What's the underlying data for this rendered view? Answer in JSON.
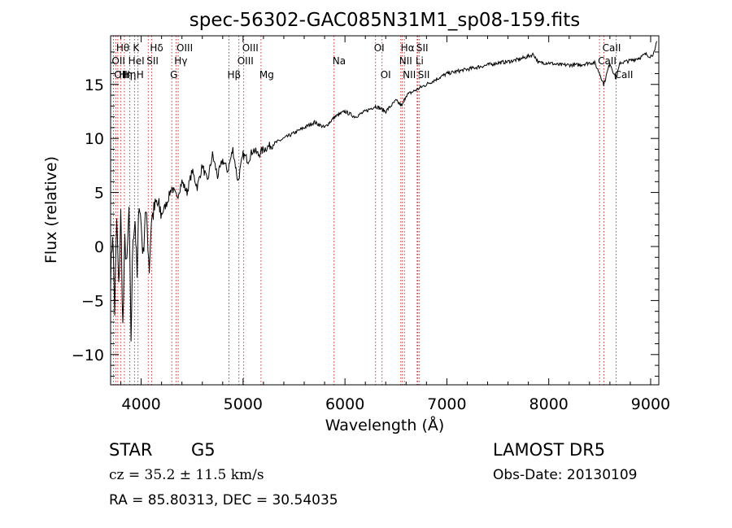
{
  "chart_data": {
    "type": "line",
    "title": "spec-56302-GAC085N31M1_sp08-159.fits",
    "xlabel": "Wavelength (Å)",
    "ylabel": "Flux (relative)",
    "xlim": [
      3700,
      9080
    ],
    "ylim": [
      -12.8,
      19.5
    ],
    "xticks": [
      "4000",
      "5000",
      "6000",
      "7000",
      "8000",
      "9000"
    ],
    "yticks": [
      "−10",
      "−5",
      "0",
      "5",
      "10",
      "15"
    ],
    "xtick_values": [
      4000,
      5000,
      6000,
      7000,
      8000,
      9000
    ],
    "ytick_values": [
      -10,
      -5,
      0,
      5,
      10,
      15
    ],
    "grid": false,
    "legend": "none",
    "series": [
      {
        "x": [
          3700,
          3720,
          3740,
          3760,
          3780,
          3800,
          3820,
          3840,
          3860,
          3880,
          3900,
          3920,
          3940,
          3960,
          3980,
          4000,
          4020,
          4040,
          4060,
          4080,
          4100,
          4150,
          4200,
          4250,
          4300,
          4350,
          4400,
          4450,
          4500,
          4550,
          4600,
          4650,
          4700,
          4750,
          4800,
          4850,
          4900,
          4950,
          5000,
          5050,
          5100,
          5150,
          5200,
          5300,
          5400,
          5500,
          5600,
          5700,
          5800,
          5900,
          6000,
          6100,
          6200,
          6300,
          6400,
          6500,
          6560,
          6600,
          6700,
          6800,
          6900,
          7000,
          7100,
          7200,
          7300,
          7400,
          7500,
          7600,
          7700,
          7800,
          7850,
          7900,
          8000,
          8100,
          8200,
          8300,
          8400,
          8450,
          8500,
          8540,
          8600,
          8660,
          8700,
          8800,
          8900,
          8950,
          9000,
          9040,
          9060
        ],
        "y": [
          -3,
          1.5,
          -6,
          2.5,
          -4,
          3,
          -7.5,
          0.5,
          -2,
          3.5,
          -8.5,
          1,
          2.5,
          -3,
          4.5,
          2,
          -1,
          3.5,
          1.5,
          -2,
          2.5,
          4,
          3,
          4,
          5.5,
          4.5,
          6,
          5,
          7,
          5.5,
          7.5,
          6,
          8.5,
          6.5,
          8,
          7,
          9,
          6,
          8.5,
          8,
          9,
          8.5,
          9,
          9.5,
          10,
          10.5,
          11,
          11.5,
          11,
          12,
          12.5,
          12,
          12.5,
          13,
          12.5,
          13.5,
          13,
          14,
          14.5,
          15,
          15.5,
          16,
          16.2,
          16.4,
          16.6,
          16.8,
          17,
          17.1,
          17.3,
          17.6,
          17.8,
          17,
          17,
          16.8,
          16.8,
          16.8,
          17,
          17,
          16,
          15,
          17,
          15.5,
          17,
          17.2,
          17.5,
          17.8,
          17.6,
          18,
          19
        ]
      }
    ],
    "lines": [
      {
        "wl": 3727,
        "label": "OII",
        "row": 1
      },
      {
        "wl": 3750,
        "label": "OII",
        "row": 2
      },
      {
        "wl": 3771,
        "label": "Hθ",
        "row": 0
      },
      {
        "wl": 3798,
        "label": "Hη",
        "row": 2
      },
      {
        "wl": 3835,
        "label": "Hη",
        "row": 2
      },
      {
        "wl": 3889,
        "label": "HeI",
        "row": 1
      },
      {
        "wl": 3934,
        "label": "K",
        "row": 0
      },
      {
        "wl": 3969,
        "label": "H",
        "row": 2
      },
      {
        "wl": 4069,
        "label": "SII",
        "row": 1
      },
      {
        "wl": 4102,
        "label": "Hδ",
        "row": 0
      },
      {
        "wl": 4300,
        "label": "G",
        "row": 2
      },
      {
        "wl": 4341,
        "label": "Hγ",
        "row": 1
      },
      {
        "wl": 4363,
        "label": "OIII",
        "row": 0
      },
      {
        "wl": 4861,
        "label": "Hβ",
        "row": 2
      },
      {
        "wl": 4959,
        "label": "OIII",
        "row": 1
      },
      {
        "wl": 5007,
        "label": "OIII",
        "row": 0
      },
      {
        "wl": 5176,
        "label": "Mg",
        "row": 2
      },
      {
        "wl": 5893,
        "label": "Na",
        "row": 1
      },
      {
        "wl": 6300,
        "label": "OI",
        "row": 0
      },
      {
        "wl": 6364,
        "label": "OI",
        "row": 2
      },
      {
        "wl": 6548,
        "label": "NII",
        "row": 1
      },
      {
        "wl": 6563,
        "label": "Hα",
        "row": 0
      },
      {
        "wl": 6583,
        "label": "NII",
        "row": 2
      },
      {
        "wl": 6708,
        "label": "Li",
        "row": 1
      },
      {
        "wl": 6716,
        "label": "SII",
        "row": 0
      },
      {
        "wl": 6731,
        "label": "SII",
        "row": 2
      },
      {
        "wl": 8498,
        "label": "CaII",
        "row": 1
      },
      {
        "wl": 8542,
        "label": "CaII",
        "row": 0
      },
      {
        "wl": 8662,
        "label": "CaII",
        "row": 2
      }
    ]
  },
  "info": {
    "object_class": "STAR",
    "subclass": "G5",
    "survey": "LAMOST DR5",
    "redshift": "cz = 35.2 ± 11.5 km/s",
    "obs_date": "Obs-Date: 20130109",
    "coords": "RA =  85.80313, DEC =  30.54035"
  }
}
